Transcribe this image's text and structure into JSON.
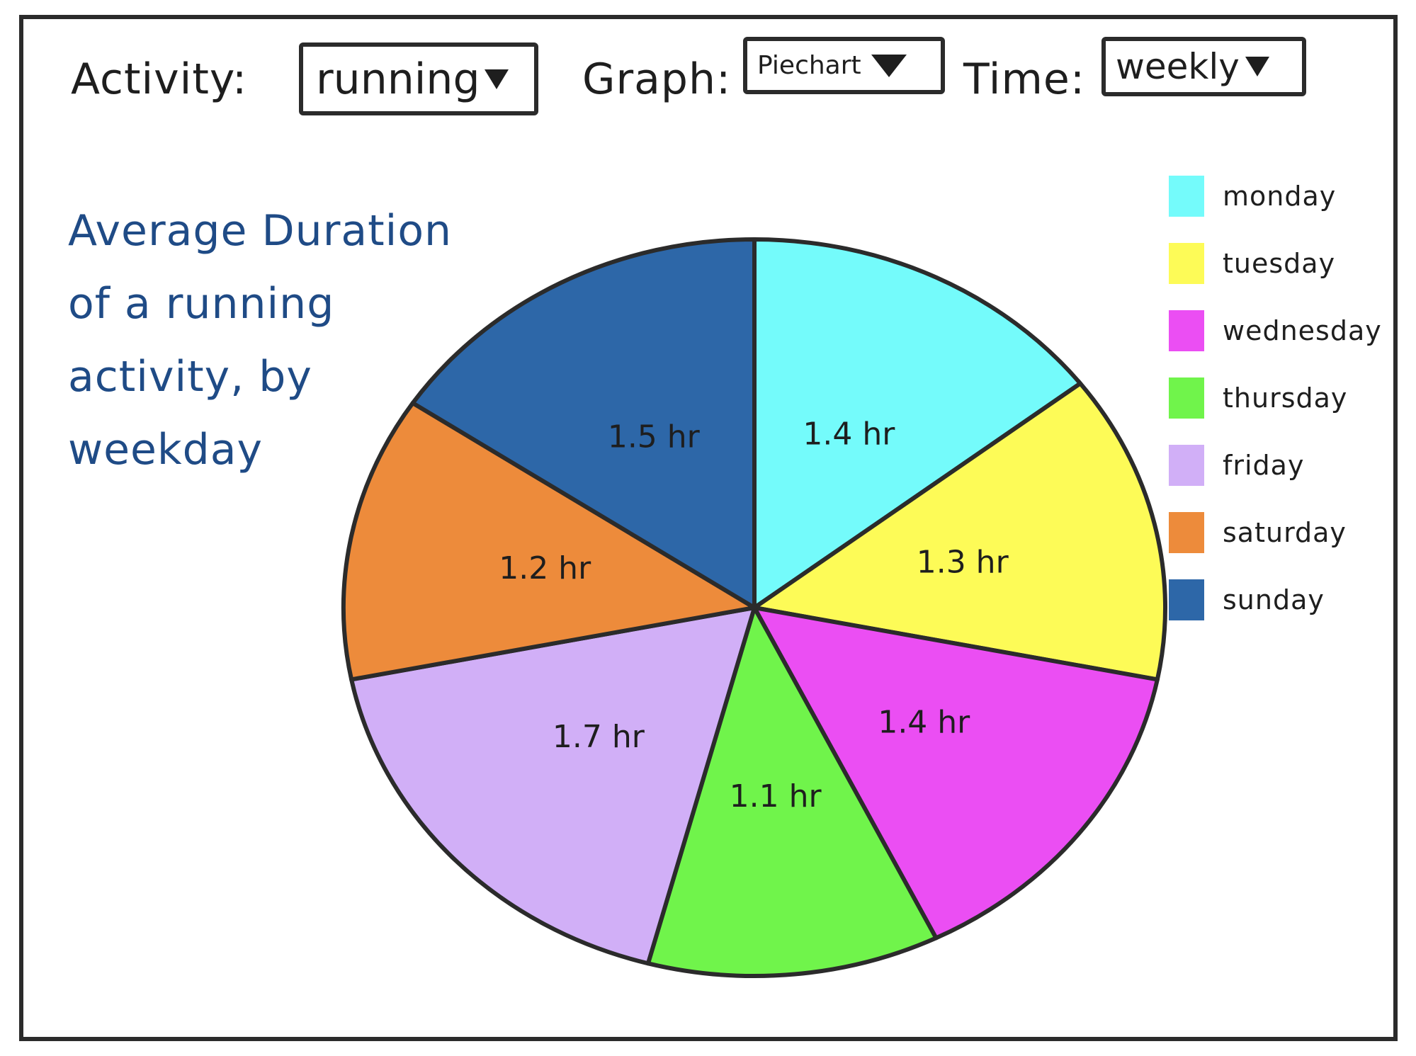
{
  "controls": {
    "activity": {
      "label": "Activity:",
      "value": "running"
    },
    "graph": {
      "label": "Graph:",
      "value": "Piechart"
    },
    "time": {
      "label": "Time:",
      "value": "weekly"
    }
  },
  "icons": {
    "dropdown": "triangle-down-icon"
  },
  "chart_data": {
    "type": "pie",
    "title": "Average Duration of a running activity, by weekday",
    "unit": "hr",
    "categories": [
      "monday",
      "tuesday",
      "wednesday",
      "thursday",
      "friday",
      "saturday",
      "sunday"
    ],
    "values": [
      1.4,
      1.3,
      1.4,
      1.1,
      1.7,
      1.2,
      1.5
    ],
    "slice_labels": [
      "1.4 hr",
      "1.3 hr",
      "1.4 hr",
      "1.1 hr",
      "1.7 hr",
      "1.2 hr",
      "1.5 hr"
    ],
    "colors": [
      "#74fbfb",
      "#fdfb57",
      "#eb4ef3",
      "#70f44b",
      "#d1aff7",
      "#ed8b3b",
      "#2d67a8"
    ],
    "start": "12 o'clock",
    "direction": "clockwise",
    "legend": "right"
  }
}
